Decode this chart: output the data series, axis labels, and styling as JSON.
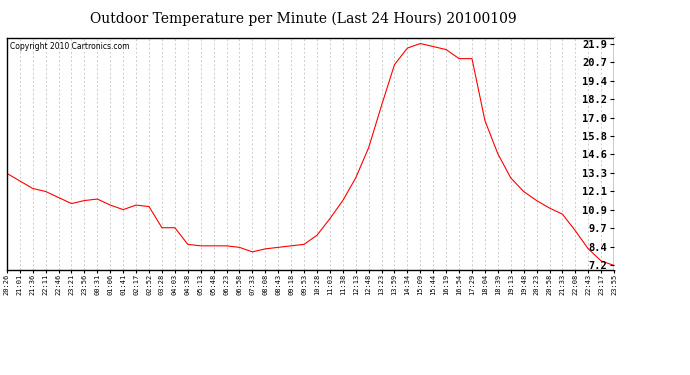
{
  "title": "Outdoor Temperature per Minute (Last 24 Hours) 20100109",
  "copyright_text": "Copyright 2010 Cartronics.com",
  "line_color": "#ff0000",
  "background_color": "#ffffff",
  "plot_background": "#ffffff",
  "grid_color": "#bbbbbb",
  "yticks": [
    7.2,
    8.4,
    9.7,
    10.9,
    12.1,
    13.3,
    14.6,
    15.8,
    17.0,
    18.2,
    19.4,
    20.7,
    21.9
  ],
  "ylim": [
    6.9,
    22.3
  ],
  "xtick_labels": [
    "20:26",
    "21:01",
    "21:36",
    "22:11",
    "22:46",
    "23:21",
    "23:56",
    "00:31",
    "01:06",
    "01:41",
    "02:17",
    "02:52",
    "03:28",
    "04:03",
    "04:38",
    "05:13",
    "05:48",
    "06:23",
    "06:58",
    "07:33",
    "08:08",
    "08:43",
    "09:18",
    "09:53",
    "10:28",
    "11:03",
    "11:38",
    "12:13",
    "12:48",
    "13:23",
    "13:59",
    "14:34",
    "15:09",
    "15:44",
    "16:19",
    "16:54",
    "17:29",
    "18:04",
    "18:39",
    "19:13",
    "19:48",
    "20:23",
    "20:58",
    "21:33",
    "22:08",
    "22:43",
    "23:17",
    "23:55"
  ],
  "curve_y": [
    13.3,
    12.8,
    12.3,
    12.1,
    11.7,
    11.3,
    11.5,
    11.6,
    11.2,
    10.9,
    11.2,
    11.1,
    9.7,
    9.7,
    8.6,
    8.5,
    8.5,
    8.5,
    8.4,
    8.1,
    8.3,
    8.4,
    8.5,
    8.6,
    9.2,
    10.3,
    11.5,
    13.0,
    15.0,
    17.8,
    20.5,
    21.6,
    21.9,
    21.7,
    21.5,
    20.9,
    20.9,
    16.8,
    14.6,
    13.0,
    12.1,
    11.5,
    11.0,
    10.6,
    9.5,
    8.3,
    7.5,
    7.2
  ]
}
